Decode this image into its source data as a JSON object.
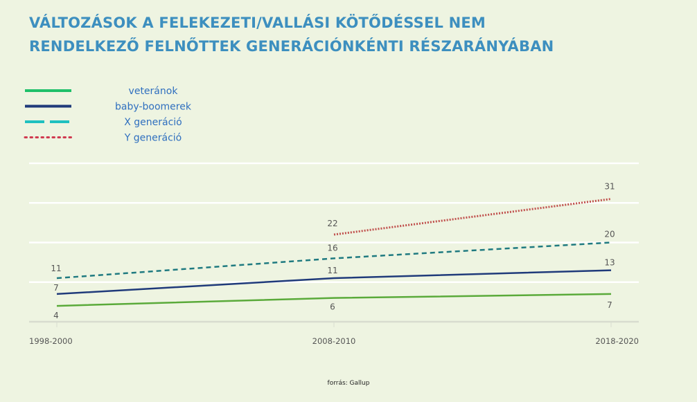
{
  "title_line1": "VÁLTOZÁSOK A FELEKEZETI/VALLÁSI  KÖTŐDÉSSEL NEM",
  "title_line2": "RENDELKEZŐ FELNŐTTEK GENERÁCIÓNKÉNTI RÉSZARÁNYÁBAN",
  "source": "forrás: Gallup",
  "chart_data": {
    "type": "line",
    "categories": [
      "1998-2000",
      "2008-2010",
      "2018-2020"
    ],
    "ylim": [
      0,
      40
    ],
    "grid": true,
    "legend_position": "top-left",
    "series": [
      {
        "name": "veteránok",
        "values": [
          4,
          6,
          7
        ],
        "color": "#5aaa3a",
        "legend_color": "#1fc06a",
        "style": "solid"
      },
      {
        "name": "baby-boomerek",
        "values": [
          7,
          11,
          13
        ],
        "color": "#1f3a7a",
        "legend_color": "#1f3a7a",
        "style": "solid"
      },
      {
        "name": "X generáció",
        "values": [
          11,
          16,
          20
        ],
        "color": "#1f7a80",
        "legend_color": "#1fc0c0",
        "style": "dashed"
      },
      {
        "name": "Y generáció",
        "values": [
          null,
          22,
          31
        ],
        "color": "#c0504d",
        "legend_color": "#d03a50",
        "style": "dotted"
      }
    ]
  }
}
